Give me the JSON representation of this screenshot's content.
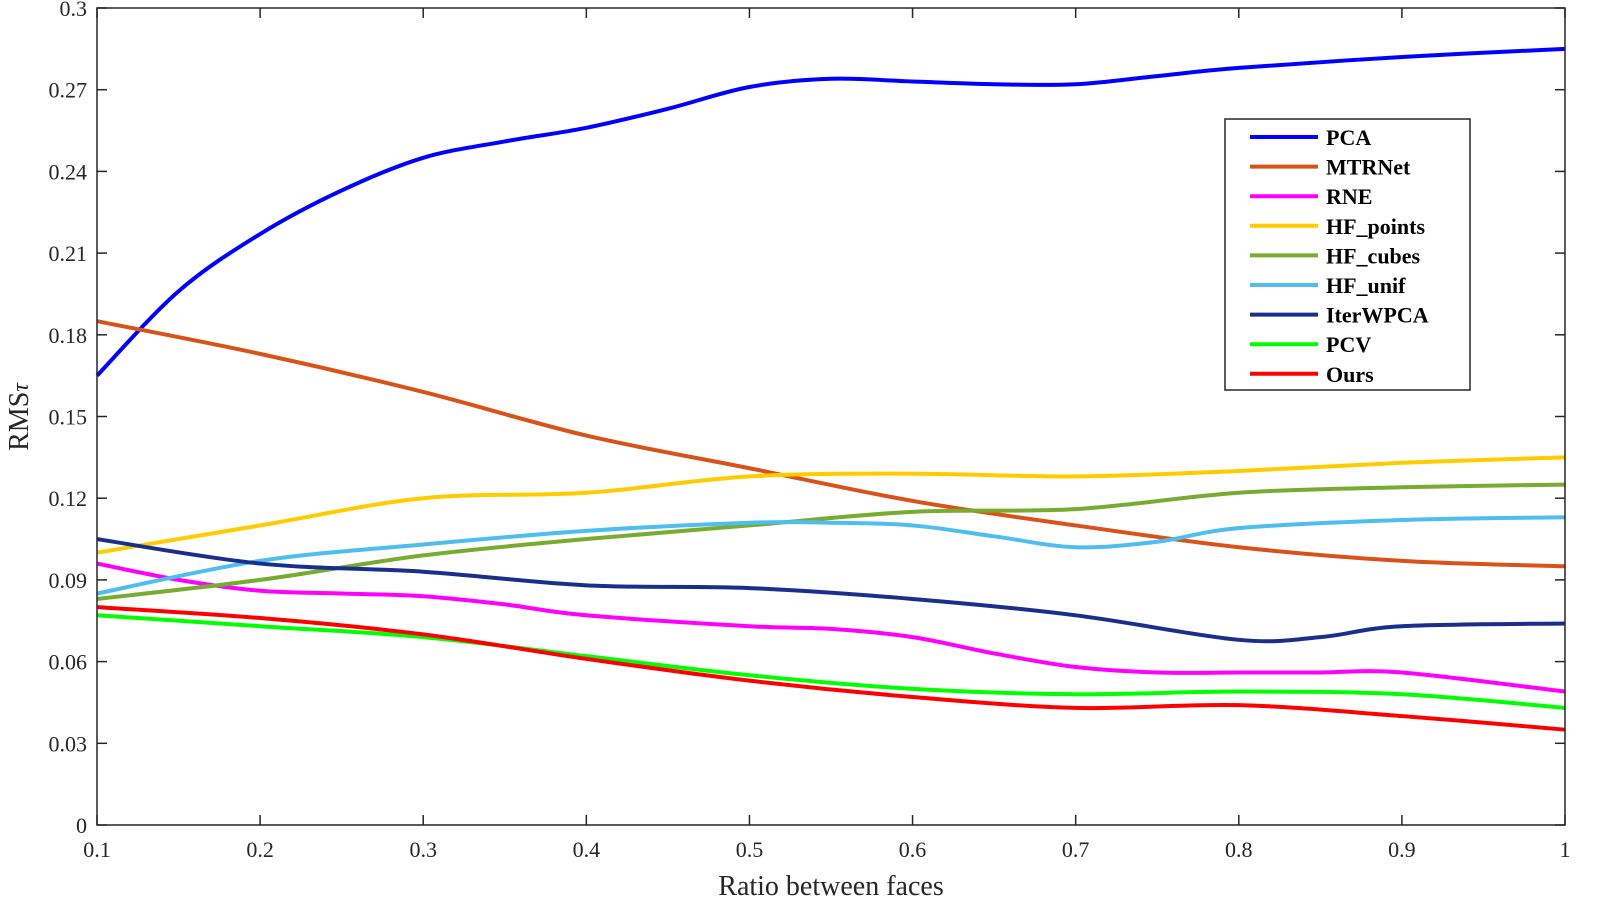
{
  "chart_data": {
    "type": "line",
    "title": "",
    "xlabel": "Ratio between faces",
    "ylabel": "RMS",
    "ylabel_subscript": "τ",
    "xlim": [
      0.1,
      1
    ],
    "ylim": [
      0,
      0.3
    ],
    "xticks": [
      "0.1",
      "0.2",
      "0.3",
      "0.4",
      "0.5",
      "0.6",
      "0.7",
      "0.8",
      "0.9",
      "1"
    ],
    "yticks": [
      "0",
      "0.03",
      "0.06",
      "0.09",
      "0.12",
      "0.15",
      "0.18",
      "0.21",
      "0.24",
      "0.27",
      "0.3"
    ],
    "grid": false,
    "legend_position": "top-right",
    "series": [
      {
        "name": "PCA",
        "color": "#0000ff",
        "x": [
          0.1,
          0.15,
          0.2,
          0.25,
          0.3,
          0.35,
          0.4,
          0.45,
          0.5,
          0.55,
          0.6,
          0.65,
          0.7,
          0.75,
          0.8,
          0.9,
          1.0
        ],
        "y": [
          0.165,
          0.196,
          0.217,
          0.233,
          0.245,
          0.251,
          0.256,
          0.263,
          0.271,
          0.274,
          0.273,
          0.272,
          0.272,
          0.275,
          0.278,
          0.282,
          0.285
        ]
      },
      {
        "name": "MTRNet",
        "color": "#d95319",
        "x": [
          0.1,
          0.2,
          0.3,
          0.4,
          0.5,
          0.6,
          0.7,
          0.8,
          0.9,
          1.0
        ],
        "y": [
          0.185,
          0.173,
          0.159,
          0.143,
          0.131,
          0.119,
          0.11,
          0.102,
          0.097,
          0.095
        ]
      },
      {
        "name": "RNE",
        "color": "#ff00ff",
        "x": [
          0.1,
          0.15,
          0.2,
          0.25,
          0.3,
          0.35,
          0.4,
          0.5,
          0.55,
          0.6,
          0.65,
          0.7,
          0.75,
          0.8,
          0.85,
          0.9,
          1.0
        ],
        "y": [
          0.096,
          0.09,
          0.086,
          0.085,
          0.084,
          0.081,
          0.077,
          0.073,
          0.072,
          0.069,
          0.063,
          0.058,
          0.056,
          0.056,
          0.056,
          0.056,
          0.049
        ]
      },
      {
        "name": "HF_points",
        "color": "#ffcc00",
        "x": [
          0.1,
          0.2,
          0.3,
          0.4,
          0.5,
          0.6,
          0.7,
          0.8,
          0.9,
          1.0
        ],
        "y": [
          0.1,
          0.11,
          0.12,
          0.122,
          0.128,
          0.129,
          0.128,
          0.13,
          0.133,
          0.135
        ]
      },
      {
        "name": "HF_cubes",
        "color": "#77ac30",
        "x": [
          0.1,
          0.2,
          0.3,
          0.4,
          0.5,
          0.6,
          0.7,
          0.8,
          0.9,
          1.0
        ],
        "y": [
          0.083,
          0.09,
          0.099,
          0.105,
          0.11,
          0.115,
          0.116,
          0.122,
          0.124,
          0.125
        ]
      },
      {
        "name": "HF_unif",
        "color": "#4dbeee",
        "x": [
          0.1,
          0.2,
          0.3,
          0.4,
          0.5,
          0.55,
          0.6,
          0.65,
          0.7,
          0.75,
          0.8,
          0.9,
          1.0
        ],
        "y": [
          0.085,
          0.097,
          0.103,
          0.108,
          0.111,
          0.111,
          0.11,
          0.106,
          0.102,
          0.104,
          0.109,
          0.112,
          0.113
        ]
      },
      {
        "name": "IterWPCA",
        "color": "#1a2f8c",
        "x": [
          0.1,
          0.2,
          0.3,
          0.4,
          0.5,
          0.6,
          0.7,
          0.8,
          0.85,
          0.9,
          1.0
        ],
        "y": [
          0.105,
          0.096,
          0.093,
          0.088,
          0.087,
          0.083,
          0.077,
          0.068,
          0.069,
          0.073,
          0.074
        ]
      },
      {
        "name": "PCV",
        "color": "#00ff00",
        "x": [
          0.1,
          0.2,
          0.3,
          0.4,
          0.5,
          0.6,
          0.7,
          0.8,
          0.9,
          1.0
        ],
        "y": [
          0.077,
          0.073,
          0.069,
          0.062,
          0.055,
          0.05,
          0.048,
          0.049,
          0.048,
          0.043
        ]
      },
      {
        "name": "Ours",
        "color": "#ff0000",
        "x": [
          0.1,
          0.2,
          0.3,
          0.4,
          0.5,
          0.6,
          0.7,
          0.8,
          0.9,
          1.0
        ],
        "y": [
          0.08,
          0.076,
          0.07,
          0.061,
          0.053,
          0.047,
          0.043,
          0.044,
          0.04,
          0.035
        ]
      }
    ]
  }
}
